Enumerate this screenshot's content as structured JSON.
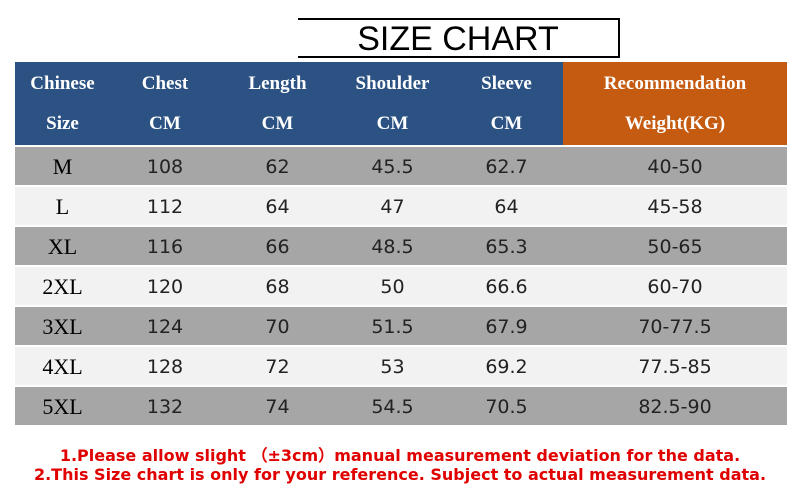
{
  "header": {
    "title": "SIZE CHART"
  },
  "table": {
    "columns": [
      [
        "Chinese",
        "Size"
      ],
      [
        "Chest",
        "CM"
      ],
      [
        "Length",
        "CM"
      ],
      [
        "Shoulder",
        "CM"
      ],
      [
        "Sleeve",
        "CM"
      ],
      [
        "Recommendation",
        "Weight(KG)"
      ]
    ],
    "rows": [
      [
        "M",
        "108",
        "62",
        "45.5",
        "62.7",
        "40-50"
      ],
      [
        "L",
        "112",
        "64",
        "47",
        "64",
        "45-58"
      ],
      [
        "XL",
        "116",
        "66",
        "48.5",
        "65.3",
        "50-65"
      ],
      [
        "2XL",
        "120",
        "68",
        "50",
        "66.6",
        "60-70"
      ],
      [
        "3XL",
        "124",
        "70",
        "51.5",
        "67.9",
        "70-77.5"
      ],
      [
        "4XL",
        "128",
        "72",
        "53",
        "69.2",
        "77.5-85"
      ],
      [
        "5XL",
        "132",
        "74",
        "54.5",
        "70.5",
        "82.5-90"
      ]
    ]
  },
  "notes": [
    "1.Please allow slight （±3cm）manual measurement deviation for the data.",
    "2.This Size chart is only for your reference. Subject to actual measurement data."
  ]
}
